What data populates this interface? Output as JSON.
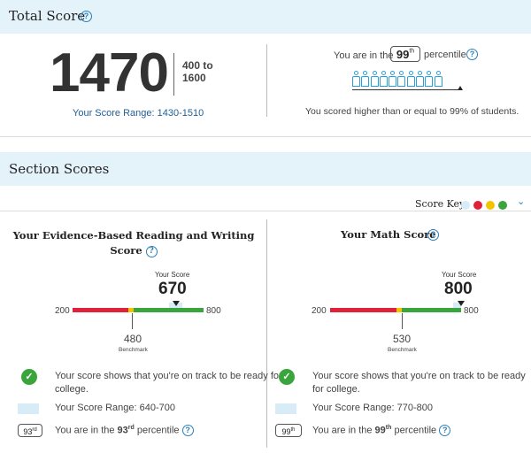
{
  "total": {
    "title": "Total Score",
    "score": "1470",
    "range_top": "400 to",
    "range_bottom": "1600",
    "score_range": "Your Score Range: 1430-1510",
    "percentile_prefix": "You are in the",
    "percentile_value": "99",
    "percentile_suffix": "th",
    "percentile_word": "percentile",
    "scored_higher": "You scored higher than or equal to 99% of students.",
    "people_count": 10
  },
  "section": {
    "title": "Section Scores",
    "score_key_label": "Score Key",
    "score_key_colors": [
      "#d8ecf7",
      "#e0213a",
      "#f2c500",
      "#3aa53c"
    ]
  },
  "reading": {
    "title_line1": "Your Evidence-Based Reading and Writing",
    "title_line2": "Score",
    "your_score_label": "Your Score",
    "score": "670",
    "min": "200",
    "max": "800",
    "benchmark": "480",
    "benchmark_label": "Benchmark",
    "on_track_line1": "Your score shows that you're on track to be ready for",
    "on_track_line2": "college.",
    "score_range": "Your Score Range: 640-700",
    "percentile_badge": "93",
    "percentile_badge_suffix": "rd",
    "percentile_prefix": "You are in the",
    "percentile_value": "93",
    "percentile_suffix": "rd",
    "percentile_word": "percentile"
  },
  "math": {
    "title": "Your Math Score",
    "your_score_label": "Your Score",
    "score": "800",
    "min": "200",
    "max": "800",
    "benchmark": "530",
    "benchmark_label": "Benchmark",
    "on_track_line1": "Your score shows that you're on track to be ready",
    "on_track_line2": "for college.",
    "score_range": "Your Score Range: 770-800",
    "percentile_badge": "99",
    "percentile_badge_suffix": "th",
    "percentile_prefix": "You are in the",
    "percentile_value": "99",
    "percentile_suffix": "th",
    "percentile_word": "percentile"
  }
}
